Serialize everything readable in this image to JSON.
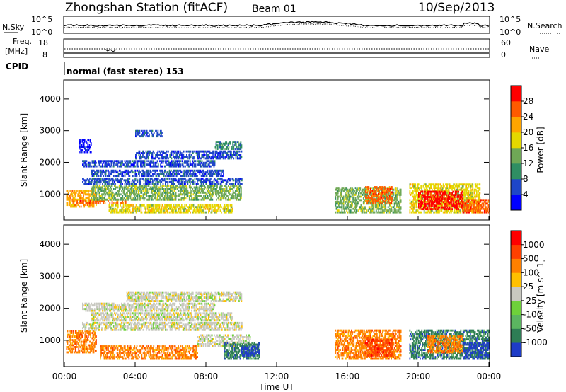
{
  "header": {
    "station_title": "Zhongshan Station (fitACF)",
    "beam": "Beam 01",
    "date": "10/Sep/2013"
  },
  "noise_panel": {
    "left_label": "N.Sky",
    "right_label": "N.Search",
    "left_ticks": [
      "10^5",
      "10^0"
    ],
    "right_ticks": [
      "10^5",
      "10^0"
    ]
  },
  "freq_panel": {
    "left_label": "Freq.",
    "left_unit": "[MHz]",
    "right_label": "Nave",
    "left_ticks": [
      "18",
      "8"
    ],
    "right_ticks": [
      "60",
      "0"
    ]
  },
  "cpid": {
    "label": "CPID",
    "mode_text": "normal (fast stereo) 153"
  },
  "time_axis": {
    "title": "Time UT",
    "ticks": [
      "00:00",
      "04:00",
      "08:00",
      "12:00",
      "16:00",
      "20:00",
      "00:00"
    ],
    "tick_hours": [
      0,
      4,
      8,
      12,
      16,
      20,
      24
    ]
  },
  "chart_data": [
    {
      "type": "heatmap",
      "name": "power",
      "ylabel": "Slant Range [km]",
      "yticks": [
        1000,
        2000,
        3000,
        4000
      ],
      "ylim": [
        180,
        4600
      ],
      "xlim": [
        0,
        24
      ],
      "colorbar": {
        "label": "Power [dB]",
        "tick_labels": [
          "4",
          "8",
          "12",
          "16",
          "20",
          "24",
          "28"
        ],
        "colors": [
          "#0000ff",
          "#1e46c8",
          "#2f8e63",
          "#6fa856",
          "#e5d800",
          "#ffa500",
          "#ff5a00",
          "#ff0000"
        ]
      },
      "regions": [
        {
          "t": [
            0.1,
            1.8
          ],
          "r": [
            580,
            1100
          ],
          "level": 5
        },
        {
          "t": [
            0.6,
            3.5
          ],
          "r": [
            700,
            800
          ],
          "level": 6
        },
        {
          "t": [
            1.5,
            10.0
          ],
          "r": [
            800,
            1250
          ],
          "level": 3
        },
        {
          "t": [
            2.5,
            9.5
          ],
          "r": [
            400,
            650
          ],
          "level": 4
        },
        {
          "t": [
            1.0,
            10.0
          ],
          "r": [
            1300,
            1500
          ],
          "level": 1
        },
        {
          "t": [
            1.5,
            9.0
          ],
          "r": [
            1550,
            1750
          ],
          "level": 1
        },
        {
          "t": [
            1.0,
            8.5
          ],
          "r": [
            1850,
            2050
          ],
          "level": 1
        },
        {
          "t": [
            4.0,
            10.0
          ],
          "r": [
            2100,
            2350
          ],
          "level": 1
        },
        {
          "t": [
            8.5,
            10.0
          ],
          "r": [
            2400,
            2650
          ],
          "level": 2
        },
        {
          "t": [
            0.8,
            1.5
          ],
          "r": [
            2300,
            2700
          ],
          "level": 0
        },
        {
          "t": [
            4.0,
            5.5
          ],
          "r": [
            2800,
            3000
          ],
          "level": 1
        },
        {
          "t": [
            15.3,
            19.0
          ],
          "r": [
            400,
            1200
          ],
          "level": 3
        },
        {
          "t": [
            17.0,
            18.5
          ],
          "r": [
            700,
            1200
          ],
          "level": 6
        },
        {
          "t": [
            19.5,
            23.5
          ],
          "r": [
            400,
            1300
          ],
          "level": 4
        },
        {
          "t": [
            20.0,
            22.5
          ],
          "r": [
            500,
            1100
          ],
          "level": 7
        },
        {
          "t": [
            22.5,
            24.0
          ],
          "r": [
            400,
            800
          ],
          "level": 6
        }
      ]
    },
    {
      "type": "heatmap",
      "name": "velocity",
      "ylabel": "Slant Range [km]",
      "yticks": [
        1000,
        2000,
        3000,
        4000
      ],
      "ylim": [
        180,
        4600
      ],
      "xlim": [
        0,
        24
      ],
      "colorbar": {
        "label": "Velocity [m s^-1]",
        "tick_labels": [
          "1000",
          "500",
          "100",
          "25",
          "-25",
          "-100",
          "-500",
          "-1000"
        ],
        "colors": [
          "#1e3cc8",
          "#2e7d55",
          "#5bb560",
          "#6ed13a",
          "#c8c8c0",
          "#ffc000",
          "#ff8000",
          "#ff4000",
          "#ff0000"
        ]
      },
      "regions": [
        {
          "t": [
            0.1,
            1.8
          ],
          "r": [
            600,
            1300
          ],
          "level": 6
        },
        {
          "t": [
            2.0,
            7.5
          ],
          "r": [
            400,
            800
          ],
          "level": 6
        },
        {
          "t": [
            1.0,
            10.0
          ],
          "r": [
            1300,
            1550
          ],
          "level": 4
        },
        {
          "t": [
            1.5,
            9.5
          ],
          "r": [
            1600,
            1850
          ],
          "level": 4
        },
        {
          "t": [
            1.0,
            8.5
          ],
          "r": [
            1900,
            2150
          ],
          "level": 4
        },
        {
          "t": [
            3.5,
            10.0
          ],
          "r": [
            2200,
            2500
          ],
          "level": 4
        },
        {
          "t": [
            7.5,
            10.5
          ],
          "r": [
            800,
            1150
          ],
          "level": 4
        },
        {
          "t": [
            9.0,
            11.0
          ],
          "r": [
            400,
            900
          ],
          "level": 1
        },
        {
          "t": [
            10.0,
            11.0
          ],
          "r": [
            500,
            800
          ],
          "level": 0
        },
        {
          "t": [
            15.3,
            19.0
          ],
          "r": [
            400,
            1300
          ],
          "level": 6
        },
        {
          "t": [
            17.0,
            18.5
          ],
          "r": [
            500,
            1000
          ],
          "level": 7
        },
        {
          "t": [
            19.5,
            24.0
          ],
          "r": [
            400,
            1300
          ],
          "level": 1
        },
        {
          "t": [
            20.5,
            22.5
          ],
          "r": [
            600,
            1100
          ],
          "level": 6
        },
        {
          "t": [
            22.5,
            24.0
          ],
          "r": [
            400,
            900
          ],
          "level": 0
        }
      ]
    }
  ]
}
